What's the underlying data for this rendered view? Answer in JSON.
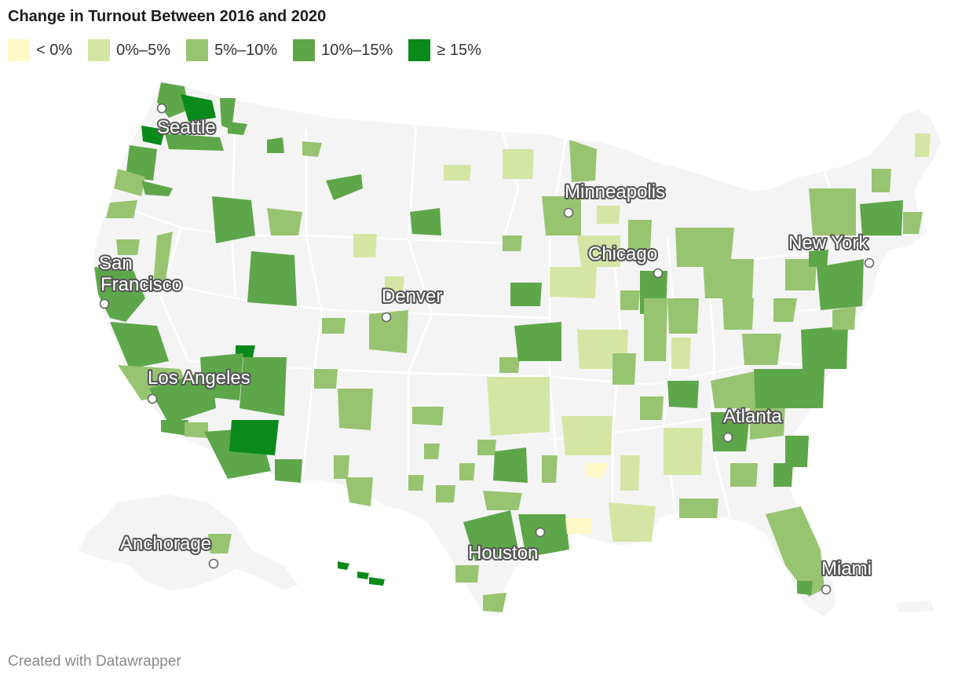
{
  "title": "Change in Turnout Between 2016 and 2020",
  "legend": [
    {
      "label": "< 0%",
      "color": "#fff8c7"
    },
    {
      "label": "0%–5%",
      "color": "#d5e6a4"
    },
    {
      "label": "5%–10%",
      "color": "#98c471"
    },
    {
      "label": "10%–15%",
      "color": "#5ea64a"
    },
    {
      "label": "≥ 15%",
      "color": "#0a8a1a"
    }
  ],
  "cities": {
    "seattle": "Seattle",
    "minneapolis": "Minneapolis",
    "san_francisco_1": "San",
    "san_francisco_2": "Francisco",
    "new_york": "New York",
    "chicago": "Chicago",
    "denver": "Denver",
    "los_angeles": "Los Angeles",
    "atlanta": "Atlanta",
    "anchorage": "Anchorage",
    "houston": "Houston",
    "miami": "Miami"
  },
  "footer": "Created with Datawrapper",
  "map_colors": {
    "land": "#f4f4f4",
    "state_border": "#ffffff",
    "marker_fill": "#ffffff",
    "marker_stroke": "#666666"
  }
}
